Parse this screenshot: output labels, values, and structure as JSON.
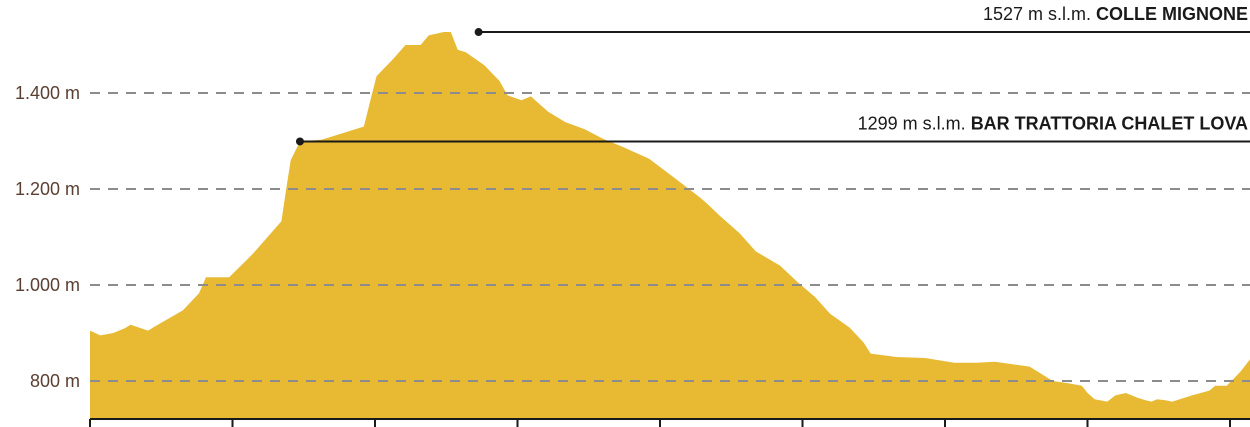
{
  "chart_data": {
    "type": "area",
    "title": "",
    "xlabel": "",
    "ylabel": "",
    "ylim": [
      715,
      1535
    ],
    "x_ticks_count": 9,
    "y_ticks": [
      800,
      1000,
      1200,
      1400
    ],
    "y_tick_labels": [
      "800 m",
      "1.000 m",
      "1.200 m",
      "1.400 m"
    ],
    "grid": "horizontal-dashed",
    "colors": {
      "fill": "#e8b933",
      "grid": "#8c8c8c",
      "axis": "#1a1a1a",
      "label": "#5a3e32"
    },
    "x": [
      0,
      0.9,
      2.0,
      3.0,
      3.5,
      5.0,
      5.7,
      8.0,
      9.4,
      10.0,
      12.0,
      14.0,
      16.5,
      16.9,
      17.3,
      18.1,
      20.0,
      23.6,
      24.7,
      26.1,
      27.2,
      27.5,
      28.5,
      29.2,
      30.5,
      31.1,
      31.7,
      32.4,
      34.0,
      35.3,
      36.0,
      37.2,
      38.0,
      39.5,
      41.0,
      42.6,
      44.2,
      46.0,
      48.2,
      50.4,
      52.6,
      53.3,
      54.3,
      56.0,
      57.4,
      59.5,
      61.0,
      62.5,
      63.8,
      65.5,
      66.7,
      67.3,
      69.5,
      72.0,
      74.5,
      76.4,
      78.0,
      81.0,
      83.0,
      84.4,
      85.5,
      86.0,
      86.6,
      87.7,
      88.4,
      89.3,
      90.3,
      91.0,
      91.5,
      92.0,
      92.7,
      93.3,
      95.0,
      96.5,
      97.0,
      98.0,
      99.2,
      100
    ],
    "values": [
      905,
      895,
      900,
      910,
      917,
      905,
      915,
      947,
      983,
      1016,
      1016,
      1064,
      1133,
      1197,
      1260,
      1299,
      1303,
      1330,
      1435,
      1470,
      1500,
      1500,
      1500,
      1520,
      1527,
      1527,
      1490,
      1485,
      1458,
      1425,
      1395,
      1385,
      1393,
      1361,
      1339,
      1325,
      1305,
      1287,
      1263,
      1223,
      1182,
      1167,
      1144,
      1108,
      1070,
      1040,
      1006,
      975,
      940,
      911,
      880,
      857,
      850,
      848,
      838,
      838,
      840,
      830,
      800,
      795,
      790,
      775,
      762,
      757,
      770,
      775,
      765,
      760,
      757,
      762,
      760,
      757,
      770,
      780,
      790,
      790,
      820,
      845
    ],
    "annotations": [
      {
        "x": 33.5,
        "y": 1527,
        "value": "1527 m s.l.m.",
        "name": "COLLE MIGNONE"
      },
      {
        "x": 18.1,
        "y": 1299,
        "value": "1299 m s.l.m.",
        "name": "BAR TRATTORIA CHALET LOVA"
      }
    ]
  }
}
